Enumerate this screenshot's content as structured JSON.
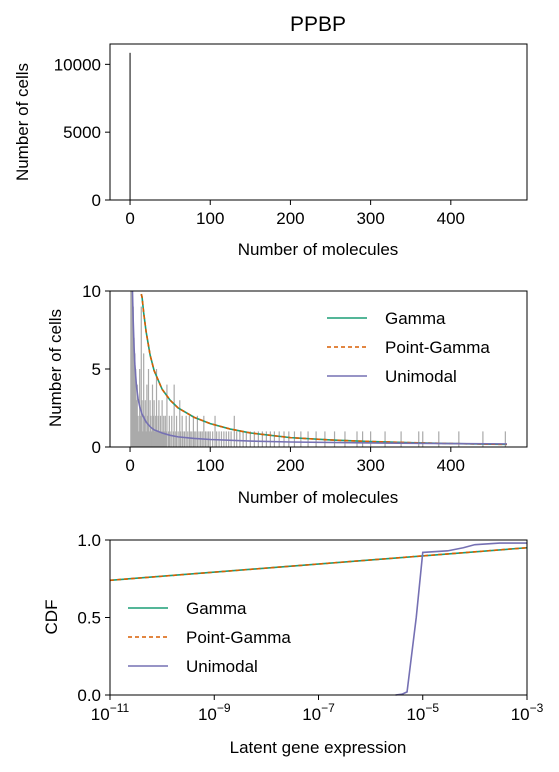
{
  "chart_data": [
    {
      "type": "bar",
      "title": "PPBP",
      "xlabel": "Number of molecules",
      "ylabel": "Number of cells",
      "xlim": [
        -25,
        495
      ],
      "ylim": [
        0,
        11500
      ],
      "xticks": [
        0,
        100,
        200,
        300,
        400
      ],
      "yticks": [
        0,
        5000,
        10000
      ],
      "bars": [
        {
          "x": 0,
          "value": 10850
        }
      ],
      "bar_color": "#000000"
    },
    {
      "type": "line",
      "xlabel": "Number of molecules",
      "ylabel": "Number of cells",
      "xlim": [
        -25,
        495
      ],
      "ylim": [
        0,
        10
      ],
      "xticks": [
        0,
        100,
        200,
        300,
        400
      ],
      "yticks": [
        0,
        5,
        10
      ],
      "histogram_color": "#aaaaaa",
      "histogram": [
        {
          "x": 1,
          "value": 10
        },
        {
          "x": 2,
          "value": 10
        },
        {
          "x": 3,
          "value": 10
        },
        {
          "x": 4,
          "value": 9
        },
        {
          "x": 5,
          "value": 7
        },
        {
          "x": 6,
          "value": 6
        },
        {
          "x": 7,
          "value": 5
        },
        {
          "x": 8,
          "value": 3
        },
        {
          "x": 9,
          "value": 4
        },
        {
          "x": 10,
          "value": 2
        },
        {
          "x": 11,
          "value": 1
        },
        {
          "x": 12,
          "value": 5
        },
        {
          "x": 13,
          "value": 2
        },
        {
          "x": 14,
          "value": 9
        },
        {
          "x": 15,
          "value": 3
        },
        {
          "x": 16,
          "value": 1
        },
        {
          "x": 17,
          "value": 6
        },
        {
          "x": 18,
          "value": 2
        },
        {
          "x": 19,
          "value": 3
        },
        {
          "x": 20,
          "value": 1
        },
        {
          "x": 21,
          "value": 4
        },
        {
          "x": 22,
          "value": 2
        },
        {
          "x": 23,
          "value": 5
        },
        {
          "x": 24,
          "value": 1
        },
        {
          "x": 25,
          "value": 3
        },
        {
          "x": 26,
          "value": 2
        },
        {
          "x": 27,
          "value": 1
        },
        {
          "x": 28,
          "value": 4
        },
        {
          "x": 29,
          "value": 2
        },
        {
          "x": 30,
          "value": 3
        },
        {
          "x": 31,
          "value": 1
        },
        {
          "x": 32,
          "value": 2
        },
        {
          "x": 33,
          "value": 5
        },
        {
          "x": 34,
          "value": 1
        },
        {
          "x": 35,
          "value": 2
        },
        {
          "x": 36,
          "value": 3
        },
        {
          "x": 37,
          "value": 1
        },
        {
          "x": 38,
          "value": 2
        },
        {
          "x": 39,
          "value": 1
        },
        {
          "x": 40,
          "value": 3
        },
        {
          "x": 41,
          "value": 1
        },
        {
          "x": 42,
          "value": 2
        },
        {
          "x": 43,
          "value": 1
        },
        {
          "x": 44,
          "value": 2
        },
        {
          "x": 45,
          "value": 1
        },
        {
          "x": 46,
          "value": 4
        },
        {
          "x": 48,
          "value": 1
        },
        {
          "x": 49,
          "value": 2
        },
        {
          "x": 50,
          "value": 1
        },
        {
          "x": 52,
          "value": 2
        },
        {
          "x": 54,
          "value": 1
        },
        {
          "x": 55,
          "value": 4
        },
        {
          "x": 57,
          "value": 1
        },
        {
          "x": 58,
          "value": 2
        },
        {
          "x": 60,
          "value": 1
        },
        {
          "x": 62,
          "value": 3
        },
        {
          "x": 63,
          "value": 1
        },
        {
          "x": 65,
          "value": 2
        },
        {
          "x": 66,
          "value": 1
        },
        {
          "x": 68,
          "value": 1
        },
        {
          "x": 70,
          "value": 2
        },
        {
          "x": 72,
          "value": 1
        },
        {
          "x": 74,
          "value": 2
        },
        {
          "x": 75,
          "value": 1
        },
        {
          "x": 77,
          "value": 1
        },
        {
          "x": 79,
          "value": 2
        },
        {
          "x": 80,
          "value": 1
        },
        {
          "x": 82,
          "value": 1
        },
        {
          "x": 84,
          "value": 2
        },
        {
          "x": 86,
          "value": 1
        },
        {
          "x": 88,
          "value": 1
        },
        {
          "x": 90,
          "value": 1
        },
        {
          "x": 92,
          "value": 2
        },
        {
          "x": 94,
          "value": 1
        },
        {
          "x": 96,
          "value": 1
        },
        {
          "x": 98,
          "value": 1
        },
        {
          "x": 100,
          "value": 1
        },
        {
          "x": 103,
          "value": 1
        },
        {
          "x": 106,
          "value": 2
        },
        {
          "x": 108,
          "value": 1
        },
        {
          "x": 111,
          "value": 1
        },
        {
          "x": 114,
          "value": 1
        },
        {
          "x": 117,
          "value": 1
        },
        {
          "x": 120,
          "value": 1
        },
        {
          "x": 123,
          "value": 1
        },
        {
          "x": 126,
          "value": 1
        },
        {
          "x": 130,
          "value": 2
        },
        {
          "x": 133,
          "value": 1
        },
        {
          "x": 137,
          "value": 1
        },
        {
          "x": 141,
          "value": 1
        },
        {
          "x": 145,
          "value": 1
        },
        {
          "x": 150,
          "value": 1
        },
        {
          "x": 155,
          "value": 1
        },
        {
          "x": 160,
          "value": 1
        },
        {
          "x": 165,
          "value": 1
        },
        {
          "x": 170,
          "value": 1
        },
        {
          "x": 175,
          "value": 1
        },
        {
          "x": 180,
          "value": 1
        },
        {
          "x": 186,
          "value": 1
        },
        {
          "x": 192,
          "value": 1
        },
        {
          "x": 198,
          "value": 1
        },
        {
          "x": 205,
          "value": 1
        },
        {
          "x": 213,
          "value": 1
        },
        {
          "x": 222,
          "value": 1
        },
        {
          "x": 232,
          "value": 1
        },
        {
          "x": 243,
          "value": 1
        },
        {
          "x": 255,
          "value": 1
        },
        {
          "x": 268,
          "value": 1
        },
        {
          "x": 283,
          "value": 1
        },
        {
          "x": 290,
          "value": 1
        },
        {
          "x": 300,
          "value": 1
        },
        {
          "x": 318,
          "value": 1
        },
        {
          "x": 338,
          "value": 1
        },
        {
          "x": 360,
          "value": 1
        },
        {
          "x": 365,
          "value": 1
        },
        {
          "x": 385,
          "value": 1
        },
        {
          "x": 410,
          "value": 1
        },
        {
          "x": 440,
          "value": 1
        },
        {
          "x": 468,
          "value": 1
        }
      ],
      "series": [
        {
          "name": "Gamma",
          "color": "#1b9e77",
          "dash": "solid",
          "x": [
            14,
            15,
            17,
            20,
            25,
            30,
            40,
            50,
            60,
            80,
            100,
            125,
            150,
            200,
            250,
            300,
            350,
            400,
            450,
            470
          ],
          "values": [
            9.8,
            9.6,
            8.6,
            7.4,
            5.9,
            4.9,
            3.7,
            3.0,
            2.5,
            1.9,
            1.5,
            1.15,
            0.9,
            0.6,
            0.45,
            0.35,
            0.28,
            0.22,
            0.18,
            0.17
          ]
        },
        {
          "name": "Point-Gamma",
          "color": "#d95f02",
          "dash": "dashed",
          "x": [
            14,
            15,
            17,
            20,
            25,
            30,
            40,
            50,
            60,
            80,
            100,
            125,
            150,
            200,
            250,
            300,
            350,
            400,
            450,
            470
          ],
          "values": [
            9.8,
            9.6,
            8.6,
            7.4,
            5.9,
            4.9,
            3.7,
            3.0,
            2.5,
            1.9,
            1.5,
            1.15,
            0.9,
            0.6,
            0.45,
            0.35,
            0.28,
            0.22,
            0.18,
            0.17
          ]
        },
        {
          "name": "Unimodal",
          "color": "#7570b3",
          "dash": "solid",
          "x": [
            3,
            4,
            5,
            6,
            8,
            10,
            12,
            15,
            20,
            25,
            30,
            40,
            50,
            60,
            80,
            100,
            150,
            200,
            300,
            400,
            470
          ],
          "values": [
            10,
            8.0,
            6.4,
            5.3,
            3.9,
            3.1,
            2.6,
            2.1,
            1.6,
            1.3,
            1.1,
            0.9,
            0.75,
            0.65,
            0.55,
            0.48,
            0.38,
            0.32,
            0.26,
            0.22,
            0.2
          ]
        }
      ],
      "legend": "upper-right"
    },
    {
      "type": "line",
      "xlabel": "Latent gene expression",
      "ylabel": "CDF",
      "xscale": "log",
      "xlim": [
        1e-11,
        0.001
      ],
      "ylim": [
        0,
        1
      ],
      "yticks": [
        "0.0",
        "0.5",
        "1.0"
      ],
      "xticks": [
        {
          "base": "10",
          "exp": "−11",
          "value": 1e-11
        },
        {
          "base": "10",
          "exp": "−9",
          "value": 1e-09
        },
        {
          "base": "10",
          "exp": "−7",
          "value": 1e-07
        },
        {
          "base": "10",
          "exp": "−5",
          "value": 1e-05
        },
        {
          "base": "10",
          "exp": "−3",
          "value": 0.001
        }
      ],
      "series": [
        {
          "name": "Gamma",
          "color": "#1b9e77",
          "dash": "solid",
          "x": [
            1e-11,
            0.001
          ],
          "values": [
            0.74,
            0.95
          ]
        },
        {
          "name": "Point-Gamma",
          "color": "#d95f02",
          "dash": "dashed",
          "x": [
            1e-11,
            0.001
          ],
          "values": [
            0.74,
            0.95
          ]
        },
        {
          "name": "Unimodal",
          "color": "#7570b3",
          "dash": "solid",
          "x": [
            3e-06,
            4e-06,
            5e-06,
            7.5e-06,
            1e-05,
            3e-05,
            6e-05,
            0.0001,
            0.0003,
            0.001
          ],
          "values": [
            0.0,
            0.005,
            0.02,
            0.5,
            0.92,
            0.93,
            0.95,
            0.97,
            0.98,
            0.98
          ]
        }
      ],
      "legend": "center-left"
    }
  ]
}
